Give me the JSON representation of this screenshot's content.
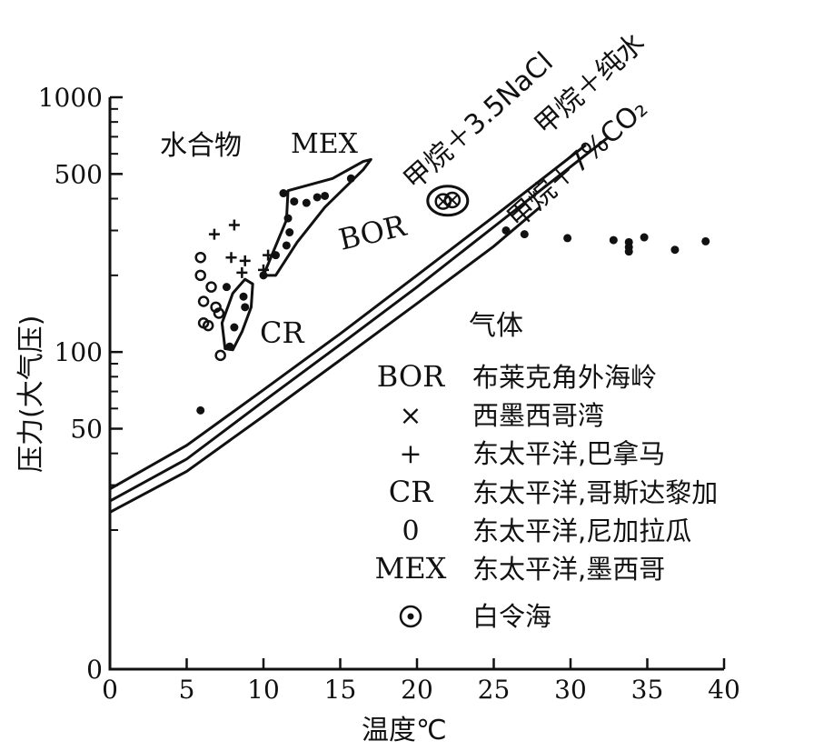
{
  "chart_data": {
    "type": "scatter",
    "title": "",
    "xlabel": "温度℃",
    "ylabel": "压力(大气压)",
    "xlim": [
      0,
      40
    ],
    "ylim": [
      0,
      1000
    ],
    "y_scale": "log",
    "x_ticks": [
      "0",
      "5",
      "10",
      "15",
      "20",
      "25",
      "30",
      "35",
      "40"
    ],
    "y_ticks": [
      "0",
      "50",
      "100",
      "500",
      "1000"
    ],
    "y_tick_values": [
      20,
      50,
      100,
      500,
      1000
    ],
    "region_labels": {
      "hydrate": "水合物",
      "gas": "气体",
      "mex": "MEX",
      "cr": "CR",
      "bor": "BOR"
    },
    "series": [
      {
        "name": "甲烷＋3.5NaCl",
        "x": [
          0,
          5,
          10,
          15,
          20,
          25,
          31
        ],
        "y": [
          29,
          43,
          71,
          118,
          200,
          340,
          650
        ]
      },
      {
        "name": "甲烷＋纯水",
        "x": [
          0,
          5,
          10,
          15,
          20,
          25,
          32.5
        ],
        "y": [
          26,
          38,
          64,
          107,
          180,
          310,
          700
        ]
      },
      {
        "name": "甲烷＋7%CO₂",
        "x": [
          0,
          5,
          10,
          15,
          20,
          25,
          28
        ],
        "y": [
          23.5,
          34,
          56,
          93,
          155,
          260,
          370
        ]
      }
    ],
    "points": [
      {
        "group": "gas",
        "marker": "dot",
        "x": 25.8,
        "y": 300
      },
      {
        "group": "gas",
        "marker": "dot",
        "x": 27,
        "y": 290
      },
      {
        "group": "gas",
        "marker": "dot",
        "x": 29.8,
        "y": 280
      },
      {
        "group": "gas",
        "marker": "dot",
        "x": 32.8,
        "y": 275
      },
      {
        "group": "gas",
        "marker": "dot",
        "x": 33.8,
        "y": 270
      },
      {
        "group": "gas",
        "marker": "dot",
        "x": 33.8,
        "y": 258
      },
      {
        "group": "gas",
        "marker": "dot",
        "x": 33.8,
        "y": 248
      },
      {
        "group": "gas",
        "marker": "dot",
        "x": 34.8,
        "y": 282
      },
      {
        "group": "gas",
        "marker": "dot",
        "x": 36.8,
        "y": 252
      },
      {
        "group": "gas",
        "marker": "dot",
        "x": 38.8,
        "y": 272
      },
      {
        "group": "other",
        "marker": "dot",
        "x": 5.9,
        "y": 59
      },
      {
        "group": "MEX",
        "marker": "dot",
        "x": 11.3,
        "y": 420
      },
      {
        "group": "MEX",
        "marker": "dot",
        "x": 12,
        "y": 390
      },
      {
        "group": "MEX",
        "marker": "dot",
        "x": 12.8,
        "y": 385
      },
      {
        "group": "MEX",
        "marker": "dot",
        "x": 13.5,
        "y": 405
      },
      {
        "group": "MEX",
        "marker": "dot",
        "x": 14,
        "y": 410
      },
      {
        "group": "MEX",
        "marker": "dot",
        "x": 15.7,
        "y": 480
      },
      {
        "group": "MEX",
        "marker": "dot",
        "x": 11.6,
        "y": 335
      },
      {
        "group": "MEX",
        "marker": "dot",
        "x": 11.7,
        "y": 295
      },
      {
        "group": "MEX",
        "marker": "dot",
        "x": 11.5,
        "y": 262
      },
      {
        "group": "MEX",
        "marker": "dot",
        "x": 10.8,
        "y": 240
      },
      {
        "group": "MEX",
        "marker": "dot",
        "x": 10,
        "y": 200
      },
      {
        "group": "panama",
        "marker": "plus",
        "x": 6.8,
        "y": 290
      },
      {
        "group": "panama",
        "marker": "plus",
        "x": 8.1,
        "y": 315
      },
      {
        "group": "panama",
        "marker": "plus",
        "x": 7.9,
        "y": 235
      },
      {
        "group": "panama",
        "marker": "plus",
        "x": 8.8,
        "y": 228
      },
      {
        "group": "panama",
        "marker": "plus",
        "x": 8.6,
        "y": 205
      },
      {
        "group": "panama",
        "marker": "plus",
        "x": 10.3,
        "y": 240
      },
      {
        "group": "panama",
        "marker": "plus",
        "x": 10,
        "y": 210
      },
      {
        "group": "CR",
        "marker": "dot",
        "x": 7.6,
        "y": 180
      },
      {
        "group": "CR",
        "marker": "dot",
        "x": 8.7,
        "y": 165
      },
      {
        "group": "CR",
        "marker": "dot",
        "x": 8.8,
        "y": 150
      },
      {
        "group": "CR",
        "marker": "dot",
        "x": 8.1,
        "y": 125
      },
      {
        "group": "CR",
        "marker": "dot",
        "x": 7.8,
        "y": 105
      },
      {
        "group": "nicaragua",
        "marker": "circle",
        "x": 5.9,
        "y": 235
      },
      {
        "group": "nicaragua",
        "marker": "circle",
        "x": 5.9,
        "y": 200
      },
      {
        "group": "nicaragua",
        "marker": "circle",
        "x": 6.6,
        "y": 180
      },
      {
        "group": "nicaragua",
        "marker": "circle",
        "x": 6.1,
        "y": 158
      },
      {
        "group": "nicaragua",
        "marker": "circle",
        "x": 6.9,
        "y": 150
      },
      {
        "group": "nicaragua",
        "marker": "circle",
        "x": 6.1,
        "y": 130
      },
      {
        "group": "nicaragua",
        "marker": "circle",
        "x": 6.4,
        "y": 127
      },
      {
        "group": "nicaragua",
        "marker": "circle",
        "x": 7.1,
        "y": 142
      },
      {
        "group": "nicaragua",
        "marker": "circle",
        "x": 7.2,
        "y": 97
      },
      {
        "group": "BOR",
        "marker": "circled-x",
        "x": 21.7,
        "y": 390
      },
      {
        "group": "BOR",
        "marker": "circled-x",
        "x": 22.3,
        "y": 395
      }
    ],
    "regions": [
      {
        "name": "MEX",
        "outline": [
          [
            10,
            200
          ],
          [
            11.5,
            330
          ],
          [
            11.6,
            430
          ],
          [
            14.5,
            480
          ],
          [
            16.5,
            560
          ],
          [
            17,
            570
          ],
          [
            16.5,
            520
          ],
          [
            14,
            370
          ],
          [
            12.2,
            270
          ],
          [
            10.8,
            200
          ],
          [
            10,
            200
          ]
        ]
      },
      {
        "name": "CR",
        "outline": [
          [
            7.5,
            103
          ],
          [
            7.3,
            130
          ],
          [
            8,
            170
          ],
          [
            8.8,
            193
          ],
          [
            9.3,
            185
          ],
          [
            9.2,
            150
          ],
          [
            8.6,
            120
          ],
          [
            8,
            102
          ],
          [
            7.5,
            103
          ]
        ]
      }
    ],
    "legend": [
      {
        "symbol": "BOR",
        "label": "布莱克角外海岭"
      },
      {
        "symbol": "×",
        "label": "西墨西哥湾"
      },
      {
        "symbol": "+",
        "label": "东太平洋,巴拿马"
      },
      {
        "symbol": "CR",
        "label": "东太平洋,哥斯达黎加"
      },
      {
        "symbol": "0",
        "label": "东太平洋,尼加拉瓜"
      },
      {
        "symbol": "MEX",
        "label": "东太平洋,墨西哥"
      },
      {
        "symbol": "⊙",
        "label": "白令海"
      }
    ]
  }
}
